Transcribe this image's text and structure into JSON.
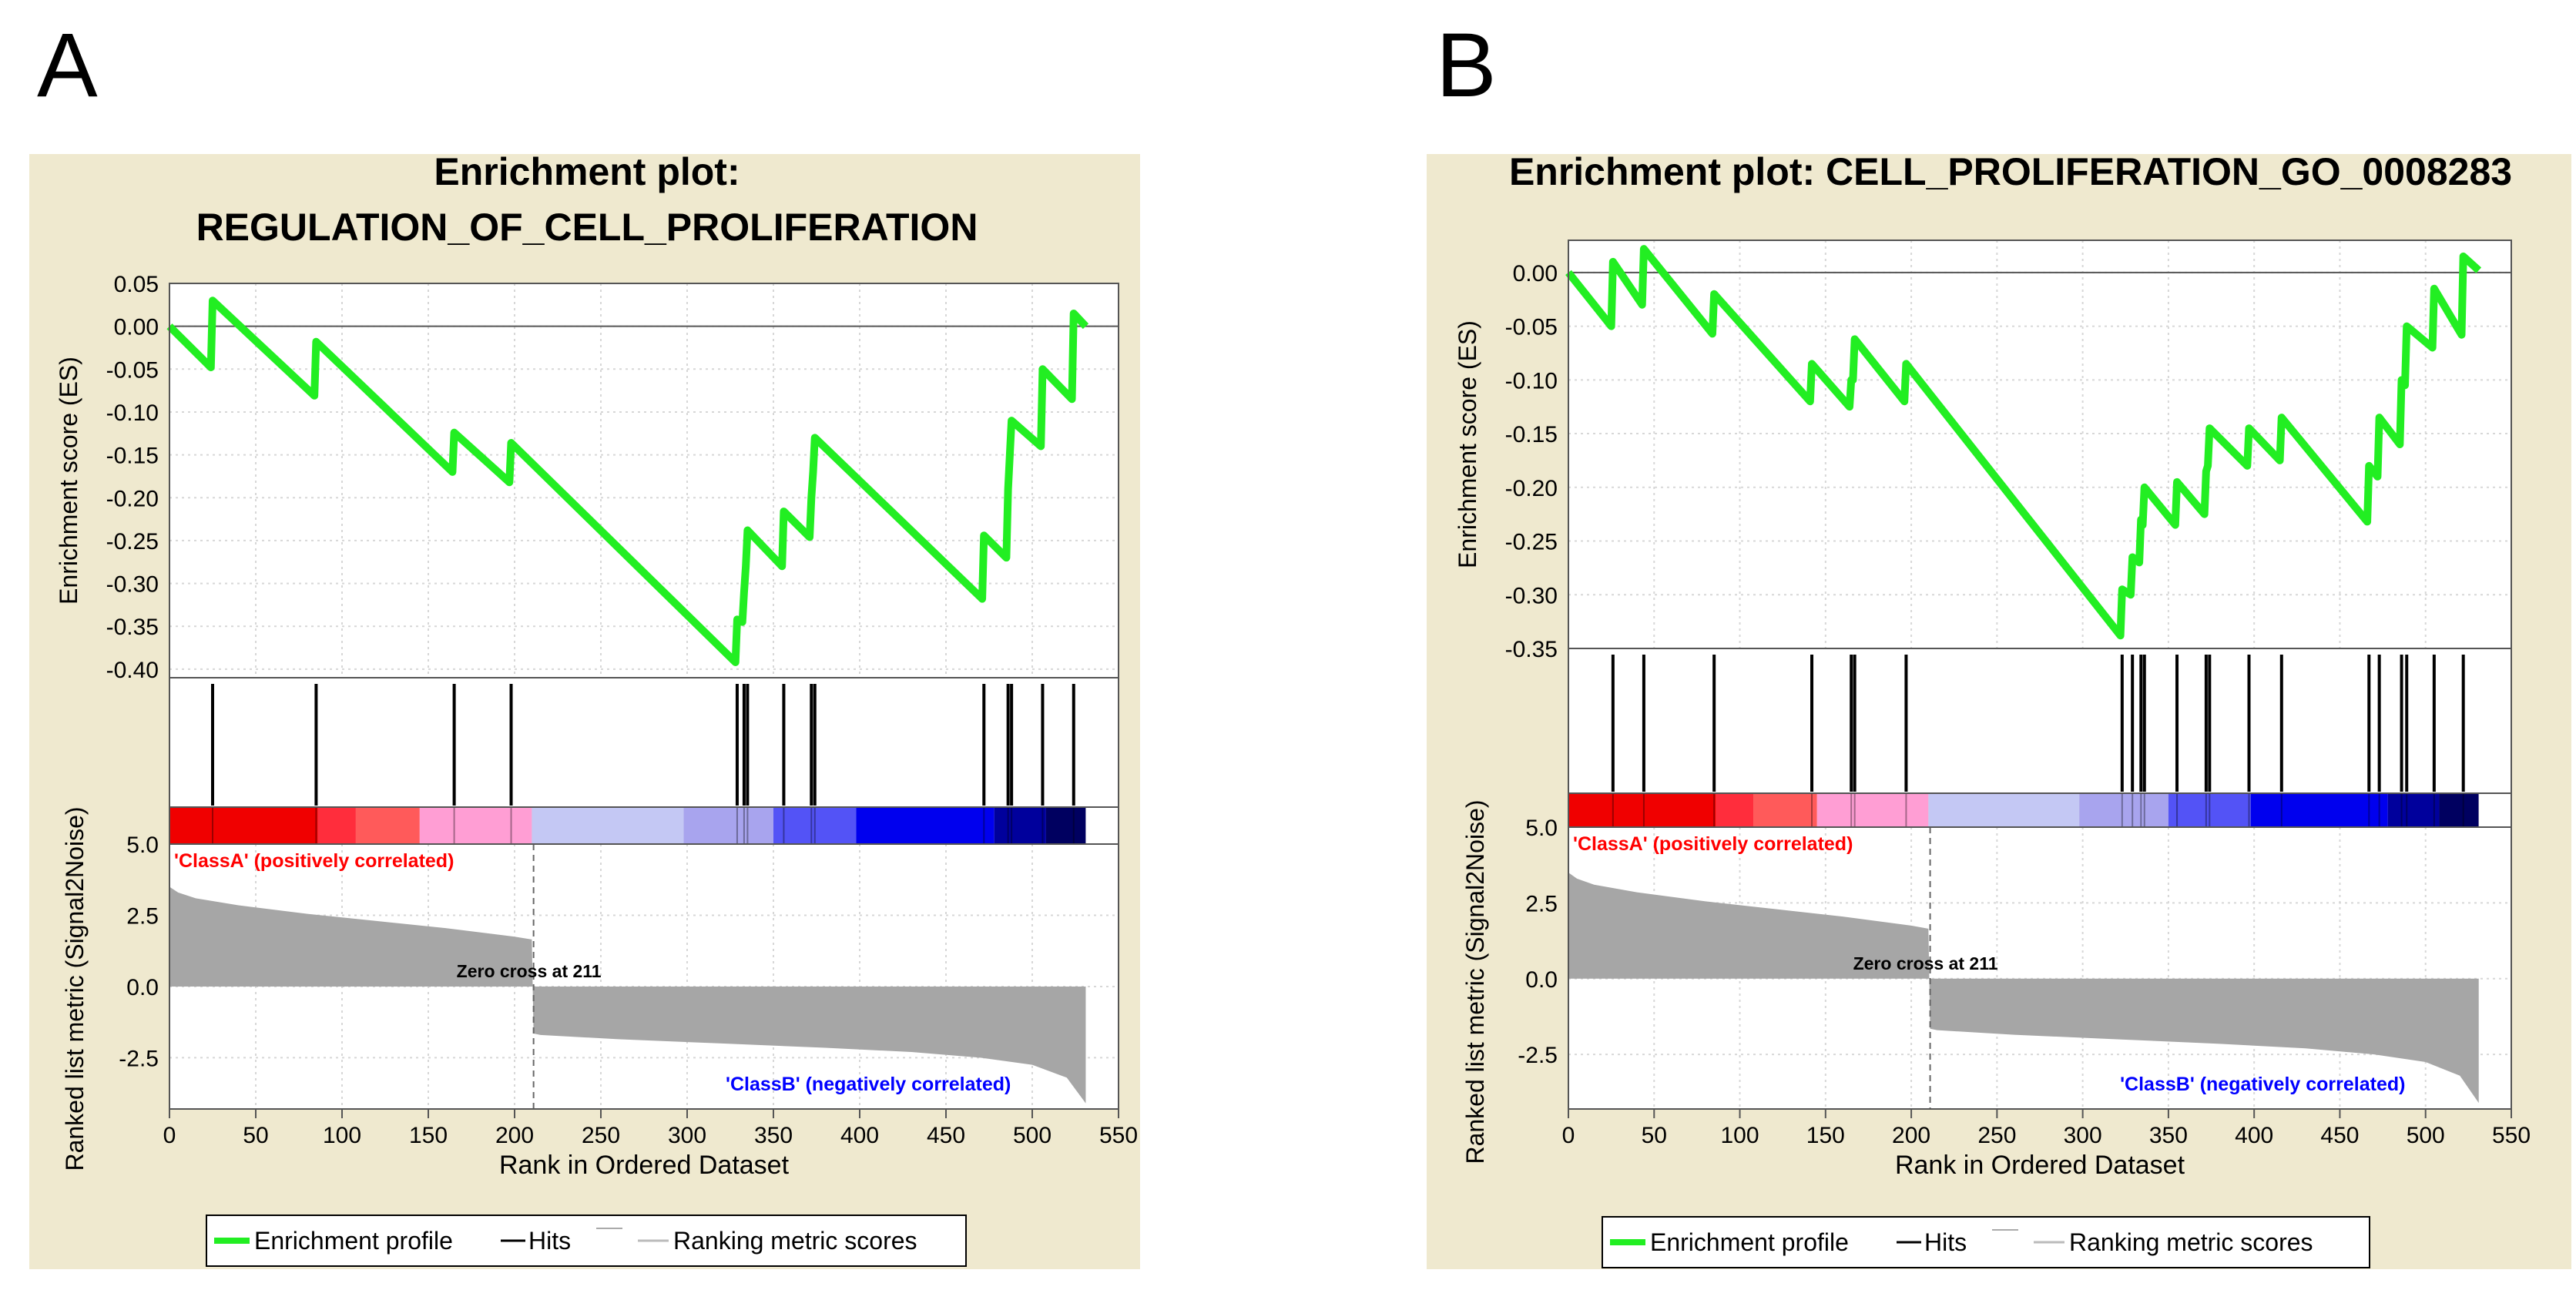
{
  "colors": {
    "panel_bg": "#efe9cf",
    "es_line": "#22ee22",
    "hits": "#000000",
    "metric_fill": "#a6a6a6",
    "class_a": "#ff0000",
    "class_b": "#0000ff",
    "grid": "#d7d7d7"
  },
  "legend": {
    "enrichment_profile": "Enrichment profile",
    "hits": "Hits",
    "ranking_metric_scores": "Ranking metric scores"
  },
  "chart_data": [
    {
      "panel_label": "A",
      "type": "line",
      "title_lines": [
        "Enrichment plot:",
        "REGULATION_OF_CELL_PROLIFERATION"
      ],
      "xlabel": "Rank in Ordered Dataset",
      "ylabel_es": "Enrichment score (ES)",
      "ylabel_metric": "Ranked list metric (Signal2Noise)",
      "xlim": [
        0,
        550
      ],
      "x_ticks": [
        0,
        50,
        100,
        150,
        200,
        250,
        300,
        350,
        400,
        450,
        500,
        550
      ],
      "x_tick_labels": [
        "0",
        "50",
        "100",
        "150",
        "200",
        "250",
        "300",
        "350",
        "400",
        "450",
        "500",
        "550"
      ],
      "es_ylim": [
        -0.41,
        0.05
      ],
      "es_ticks": [
        0.05,
        0.0,
        -0.05,
        -0.1,
        -0.15,
        -0.2,
        -0.25,
        -0.3,
        -0.35,
        -0.4
      ],
      "es_tick_labels": [
        "0.05",
        "0.00",
        "-0.05",
        "-0.10",
        "-0.15",
        "-0.20",
        "-0.25",
        "-0.30",
        "-0.35",
        "-0.40"
      ],
      "n_genes": 532,
      "es_series": {
        "x": [
          0,
          24,
          25,
          84,
          85,
          164,
          165,
          197,
          198,
          328,
          329,
          332,
          333,
          334,
          335,
          355,
          356,
          371,
          372,
          373,
          374,
          471,
          472,
          485,
          486,
          487,
          488,
          505,
          506,
          523,
          524,
          531
        ],
        "y": [
          0.0,
          -0.048,
          0.03,
          -0.081,
          -0.018,
          -0.17,
          -0.124,
          -0.182,
          -0.136,
          -0.392,
          -0.342,
          -0.345,
          -0.31,
          -0.28,
          -0.238,
          -0.28,
          -0.216,
          -0.246,
          -0.2,
          -0.17,
          -0.13,
          -0.318,
          -0.244,
          -0.27,
          -0.19,
          -0.15,
          -0.11,
          -0.14,
          -0.05,
          -0.085,
          0.015,
          0.0
        ]
      },
      "hits": [
        25,
        85,
        165,
        198,
        329,
        333,
        335,
        356,
        372,
        374,
        472,
        486,
        488,
        506,
        524
      ],
      "color_bar_blocks": [
        {
          "end": 86,
          "color": "#f00000"
        },
        {
          "end": 108,
          "color": "#ff2d3c"
        },
        {
          "end": 145,
          "color": "#ff5a5a"
        },
        {
          "end": 210,
          "color": "#ff9ed4"
        },
        {
          "end": 298,
          "color": "#c4c8f4"
        },
        {
          "end": 350,
          "color": "#a8a4ee"
        },
        {
          "end": 398,
          "color": "#5353f6"
        },
        {
          "end": 478,
          "color": "#0000ee"
        },
        {
          "end": 508,
          "color": "#00009c"
        },
        {
          "end": 531,
          "color": "#000060"
        }
      ],
      "metric_ylim": [
        -4.3,
        5.0
      ],
      "metric_ticks": [
        5.0,
        2.5,
        0.0,
        -2.5
      ],
      "metric_tick_labels": [
        "5.0",
        "2.5",
        "0.0",
        "-2.5"
      ],
      "metric_profile": {
        "x": [
          0,
          5,
          15,
          40,
          80,
          120,
          160,
          200,
          210,
          211,
          215,
          260,
          320,
          380,
          430,
          470,
          500,
          520,
          531
        ],
        "y": [
          3.5,
          3.3,
          3.1,
          2.85,
          2.55,
          2.3,
          2.05,
          1.75,
          1.65,
          -1.65,
          -1.7,
          -1.85,
          -2.0,
          -2.15,
          -2.3,
          -2.5,
          -2.75,
          -3.2,
          -4.1
        ]
      },
      "zero_cross_x": 211,
      "annotations": {
        "class_a": "'ClassA' (positively correlated)",
        "class_b": "'ClassB' (negatively correlated)",
        "zero_cross": "Zero cross at 211"
      }
    },
    {
      "panel_label": "B",
      "type": "line",
      "title_lines": [
        "Enrichment plot: CELL_PROLIFERATION_GO_0008283"
      ],
      "xlabel": "Rank in Ordered Dataset",
      "ylabel_es": "Enrichment score (ES)",
      "ylabel_metric": "Ranked list metric (Signal2Noise)",
      "xlim": [
        0,
        550
      ],
      "x_ticks": [
        0,
        50,
        100,
        150,
        200,
        250,
        300,
        350,
        400,
        450,
        500,
        550
      ],
      "x_tick_labels": [
        "0",
        "50",
        "100",
        "150",
        "200",
        "250",
        "300",
        "350",
        "400",
        "450",
        "500",
        "550"
      ],
      "es_ylim": [
        -0.35,
        0.03
      ],
      "es_ticks": [
        0.0,
        -0.05,
        -0.1,
        -0.15,
        -0.2,
        -0.25,
        -0.3,
        -0.35
      ],
      "es_tick_labels": [
        "0.00",
        "-0.05",
        "-0.10",
        "-0.15",
        "-0.20",
        "-0.25",
        "-0.30",
        "-0.35"
      ],
      "n_genes": 532,
      "es_series": {
        "x": [
          0,
          25,
          26,
          43,
          44,
          84,
          85,
          141,
          142,
          164,
          165,
          166,
          167,
          196,
          197,
          322,
          323,
          328,
          329,
          333,
          334,
          335,
          336,
          354,
          355,
          371,
          372,
          373,
          374,
          396,
          397,
          415,
          416,
          466,
          467,
          472,
          473,
          485,
          486,
          488,
          489,
          504,
          505,
          521,
          522,
          531
        ],
        "y": [
          0.0,
          -0.05,
          0.01,
          -0.03,
          0.022,
          -0.057,
          -0.02,
          -0.12,
          -0.085,
          -0.125,
          -0.1,
          -0.1,
          -0.062,
          -0.12,
          -0.085,
          -0.338,
          -0.295,
          -0.3,
          -0.265,
          -0.27,
          -0.23,
          -0.235,
          -0.2,
          -0.235,
          -0.195,
          -0.225,
          -0.185,
          -0.18,
          -0.145,
          -0.18,
          -0.145,
          -0.175,
          -0.135,
          -0.232,
          -0.18,
          -0.19,
          -0.135,
          -0.16,
          -0.1,
          -0.105,
          -0.05,
          -0.07,
          -0.015,
          -0.058,
          0.015,
          0.002
        ]
      },
      "hits": [
        26,
        44,
        85,
        142,
        165,
        167,
        197,
        323,
        329,
        334,
        336,
        355,
        372,
        374,
        397,
        416,
        467,
        473,
        486,
        489,
        505,
        522
      ],
      "color_bar_blocks": [
        {
          "end": 86,
          "color": "#f00000"
        },
        {
          "end": 108,
          "color": "#ff2d3c"
        },
        {
          "end": 145,
          "color": "#ff5a5a"
        },
        {
          "end": 210,
          "color": "#ff9ed4"
        },
        {
          "end": 298,
          "color": "#c4c8f4"
        },
        {
          "end": 350,
          "color": "#a8a4ee"
        },
        {
          "end": 398,
          "color": "#5353f6"
        },
        {
          "end": 478,
          "color": "#0000ee"
        },
        {
          "end": 508,
          "color": "#00009c"
        },
        {
          "end": 531,
          "color": "#000060"
        }
      ],
      "metric_ylim": [
        -4.3,
        5.0
      ],
      "metric_ticks": [
        5.0,
        2.5,
        0.0,
        -2.5
      ],
      "metric_tick_labels": [
        "5.0",
        "2.5",
        "0.0",
        "-2.5"
      ],
      "metric_profile": {
        "x": [
          0,
          5,
          15,
          40,
          80,
          120,
          160,
          200,
          210,
          211,
          215,
          260,
          320,
          380,
          430,
          470,
          500,
          520,
          531
        ],
        "y": [
          3.5,
          3.3,
          3.1,
          2.85,
          2.55,
          2.3,
          2.05,
          1.75,
          1.65,
          -1.65,
          -1.7,
          -1.85,
          -2.0,
          -2.15,
          -2.3,
          -2.5,
          -2.75,
          -3.2,
          -4.1
        ]
      },
      "zero_cross_x": 211,
      "annotations": {
        "class_a": "'ClassA' (positively correlated)",
        "class_b": "'ClassB' (negatively correlated)",
        "zero_cross": "Zero cross at 211"
      }
    }
  ]
}
